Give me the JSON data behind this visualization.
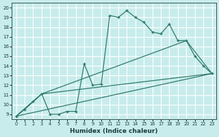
{
  "xlabel": "Humidex (Indice chaleur)",
  "bg_color": "#c8ecec",
  "grid_color": "#ffffff",
  "line_color": "#2d7a6a",
  "xlim": [
    -0.5,
    23.5
  ],
  "ylim": [
    8.5,
    20.5
  ],
  "xticks": [
    0,
    1,
    2,
    3,
    4,
    5,
    6,
    7,
    8,
    9,
    10,
    11,
    12,
    13,
    14,
    15,
    16,
    17,
    18,
    19,
    20,
    21,
    22,
    23
  ],
  "yticks": [
    9,
    10,
    11,
    12,
    13,
    14,
    15,
    16,
    17,
    18,
    19,
    20
  ],
  "curve1_x": [
    0,
    1,
    2,
    3,
    4,
    5,
    6,
    7,
    8,
    9,
    10,
    11,
    12,
    13,
    14,
    15,
    16,
    17,
    18,
    19,
    20,
    21,
    22,
    23
  ],
  "curve1_y": [
    8.8,
    9.5,
    10.3,
    11.1,
    9.0,
    9.0,
    9.3,
    9.3,
    14.2,
    12.0,
    12.1,
    19.2,
    19.0,
    19.7,
    19.0,
    18.5,
    17.5,
    17.3,
    18.3,
    16.6,
    16.6,
    15.0,
    14.0,
    13.2
  ],
  "line1_x": [
    0,
    23
  ],
  "line1_y": [
    8.8,
    13.2
  ],
  "line2_x": [
    0,
    3,
    23
  ],
  "line2_y": [
    8.8,
    11.1,
    13.2
  ],
  "line3_x": [
    0,
    3,
    20,
    23
  ],
  "line3_y": [
    8.8,
    11.1,
    16.6,
    13.2
  ]
}
